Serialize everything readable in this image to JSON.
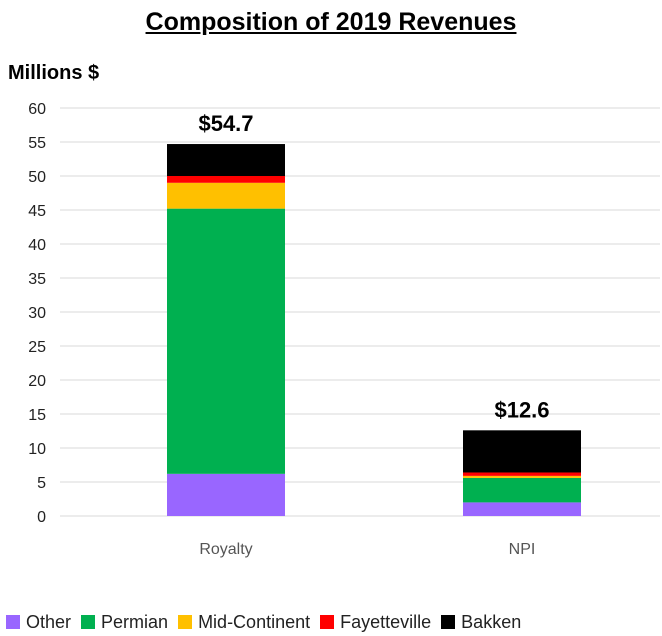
{
  "chart_data": {
    "type": "bar",
    "stacked": true,
    "title": "Composition  of 2019 Revenues",
    "ylabel": "Millions $",
    "xlabel": "",
    "ylim": [
      0,
      60
    ],
    "yticks": [
      0,
      5,
      10,
      15,
      20,
      25,
      30,
      35,
      40,
      45,
      50,
      55,
      60
    ],
    "grid": true,
    "legend_position": "bottom",
    "categories": [
      "Royalty",
      "NPI"
    ],
    "totals_labels": [
      "$54.7",
      "$12.6"
    ],
    "series": [
      {
        "name": "Other",
        "color": "#9966ff",
        "values": [
          6.2,
          2.0
        ]
      },
      {
        "name": "Permian",
        "color": "#00b050",
        "values": [
          39.0,
          3.6
        ]
      },
      {
        "name": "Mid-Continent",
        "color": "#ffc000",
        "values": [
          3.8,
          0.3
        ]
      },
      {
        "name": "Fayetteville",
        "color": "#ff0000",
        "values": [
          1.0,
          0.5
        ]
      },
      {
        "name": "Bakken",
        "color": "#000000",
        "values": [
          4.7,
          6.2
        ]
      }
    ]
  }
}
